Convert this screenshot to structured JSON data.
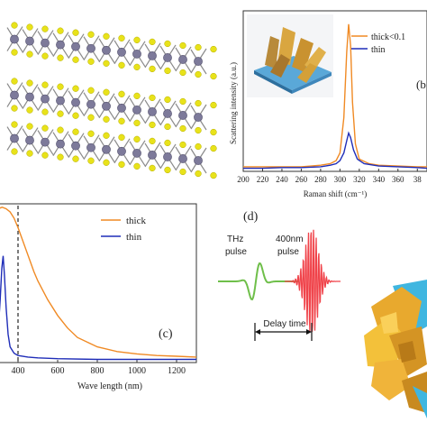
{
  "panel_a": {
    "layers": 3
  },
  "panel_b": {
    "label": "(b",
    "chart_data": {
      "type": "line",
      "xlabel": "Raman shift (cm⁻¹)",
      "ylabel": "Scattering intensity (a.u.)",
      "xlim": [
        200,
        390
      ],
      "xticks": [
        "200",
        "220",
        "240",
        "260",
        "280",
        "300",
        "320",
        "340",
        "360",
        "38"
      ],
      "series": [
        {
          "name": "thick<0.1",
          "color": "#f08a24",
          "x": [
            200,
            220,
            240,
            260,
            270,
            280,
            290,
            296,
            300,
            304,
            307,
            309,
            311,
            313,
            316,
            320,
            330,
            340,
            360,
            380,
            390
          ],
          "y": [
            0.03,
            0.03,
            0.03,
            0.03,
            0.035,
            0.04,
            0.05,
            0.07,
            0.12,
            0.35,
            0.78,
            0.96,
            0.82,
            0.45,
            0.18,
            0.08,
            0.05,
            0.04,
            0.035,
            0.03,
            0.03
          ]
        },
        {
          "name": "thin",
          "color": "#1f2db8",
          "x": [
            200,
            220,
            240,
            260,
            280,
            290,
            296,
            300,
            304,
            307,
            309,
            311,
            314,
            318,
            325,
            340,
            360,
            380,
            390
          ],
          "y": [
            0.02,
            0.02,
            0.025,
            0.025,
            0.03,
            0.04,
            0.05,
            0.07,
            0.12,
            0.2,
            0.25,
            0.22,
            0.14,
            0.08,
            0.05,
            0.035,
            0.03,
            0.025,
            0.02
          ]
        }
      ]
    }
  },
  "panel_c": {
    "label": "(c)",
    "chart_data": {
      "type": "line",
      "xlabel": "Wave length (nm)",
      "xlim": [
        300,
        1300
      ],
      "xticks": [
        "400",
        "600",
        "800",
        "1000",
        "1200"
      ],
      "xtick_values": [
        400,
        600,
        800,
        1000,
        1200
      ],
      "dashed_x": 400,
      "series": [
        {
          "name": "thick",
          "color": "#f08a24",
          "x": [
            300,
            320,
            340,
            360,
            380,
            400,
            420,
            440,
            460,
            480,
            500,
            550,
            600,
            650,
            700,
            800,
            900,
            1000,
            1100,
            1200,
            1300
          ],
          "y": [
            0.98,
            0.99,
            0.98,
            0.96,
            0.92,
            0.86,
            0.79,
            0.72,
            0.65,
            0.58,
            0.52,
            0.4,
            0.3,
            0.22,
            0.16,
            0.1,
            0.07,
            0.055,
            0.045,
            0.04,
            0.035
          ]
        },
        {
          "name": "thin",
          "color": "#1f2db8",
          "x": [
            300,
            310,
            318,
            325,
            332,
            340,
            350,
            360,
            380,
            400,
            450,
            500,
            600,
            800,
            1000,
            1300
          ],
          "y": [
            0.2,
            0.4,
            0.6,
            0.68,
            0.55,
            0.35,
            0.18,
            0.1,
            0.06,
            0.045,
            0.035,
            0.03,
            0.025,
            0.02,
            0.02,
            0.02
          ]
        }
      ]
    }
  },
  "panel_d": {
    "label": "(d)",
    "thz_label": [
      "THz",
      "pulse"
    ],
    "pump_label": [
      "400nm",
      "pulse"
    ],
    "delay_label": "Delay time",
    "thz_color": "#6fbf4a",
    "pump_color": "#f0434a"
  }
}
